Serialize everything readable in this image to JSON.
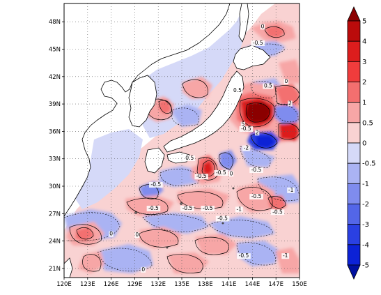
{
  "map": {
    "lon_range": [
      120,
      150
    ],
    "lat_range": [
      20,
      50
    ],
    "lon_ticks": [
      "120E",
      "123E",
      "126E",
      "129E",
      "132E",
      "135E",
      "138E",
      "141E",
      "144E",
      "147E",
      "150E"
    ],
    "lat_ticks": [
      "21N",
      "24N",
      "27N",
      "30N",
      "33N",
      "36N",
      "39N",
      "42N",
      "45N",
      "48N"
    ],
    "lon_tick_values": [
      120,
      123,
      126,
      129,
      132,
      135,
      138,
      141,
      144,
      147,
      150
    ],
    "lat_tick_values": [
      21,
      24,
      27,
      30,
      33,
      36,
      39,
      42,
      45,
      48
    ],
    "grid": true,
    "contour_labels": [
      {
        "text": "0",
        "lon": 145.3,
        "lat": 47.3
      },
      {
        "text": "-0.5",
        "lon": 144.7,
        "lat": 45.5
      },
      {
        "text": "0",
        "lon": 148.3,
        "lat": 41.3
      },
      {
        "text": "0.5",
        "lon": 146.0,
        "lat": 40.8
      },
      {
        "text": "0.5",
        "lon": 142.1,
        "lat": 40.3
      },
      {
        "text": "2",
        "lon": 148.8,
        "lat": 38.9
      },
      {
        "text": "5",
        "lon": 142.8,
        "lat": 36.6
      },
      {
        "text": "-0.5",
        "lon": 143.2,
        "lat": 36.1
      },
      {
        "text": "2",
        "lon": 144.6,
        "lat": 35.7
      },
      {
        "text": "-2",
        "lon": 143.2,
        "lat": 34.0
      },
      {
        "text": "0.5",
        "lon": 136.0,
        "lat": 32.9
      },
      {
        "text": "-0.5",
        "lon": 137.5,
        "lat": 30.9
      },
      {
        "text": "-0.5",
        "lon": 140.0,
        "lat": 31.3
      },
      {
        "text": "0",
        "lon": 141.3,
        "lat": 31.2
      },
      {
        "text": "-0.5",
        "lon": 144.5,
        "lat": 31.6
      },
      {
        "text": "-0.5",
        "lon": 131.7,
        "lat": 30.0
      },
      {
        "text": "-1",
        "lon": 148.9,
        "lat": 29.4
      },
      {
        "text": "-0.5",
        "lon": 144.5,
        "lat": 28.7
      },
      {
        "text": "-0.5",
        "lon": 131.4,
        "lat": 27.4
      },
      {
        "text": "-0.5",
        "lon": 135.7,
        "lat": 27.4
      },
      {
        "text": "-0.5",
        "lon": 138.3,
        "lat": 27.4
      },
      {
        "text": "-1",
        "lon": 142.3,
        "lat": 27.3
      },
      {
        "text": "-0.5",
        "lon": 147.2,
        "lat": 27.0
      },
      {
        "text": "-0.5",
        "lon": 140.2,
        "lat": 26.3
      },
      {
        "text": "0",
        "lon": 126.0,
        "lat": 24.6
      },
      {
        "text": "0",
        "lon": 129.3,
        "lat": 24.5
      },
      {
        "text": "-0.5",
        "lon": 142.9,
        "lat": 22.2
      },
      {
        "text": "-1",
        "lon": 148.2,
        "lat": 22.2
      },
      {
        "text": "0",
        "lon": 130.1,
        "lat": 20.7
      }
    ]
  },
  "colorbar": {
    "labels": [
      "5",
      "4",
      "3",
      "2",
      "1",
      "0.5",
      "0",
      "-0.5",
      "-1",
      "-2",
      "-3",
      "-4",
      "-5"
    ],
    "colors": [
      "#8b0000",
      "#bb0b0b",
      "#dc1d1d",
      "#f03c3c",
      "#f36f6f",
      "#f7a6a6",
      "#f9d2d2",
      "#d5d9f8",
      "#aab3f3",
      "#7f8cee",
      "#5366e8",
      "#2a40e2",
      "#0c22d6",
      "#0010a0"
    ]
  }
}
